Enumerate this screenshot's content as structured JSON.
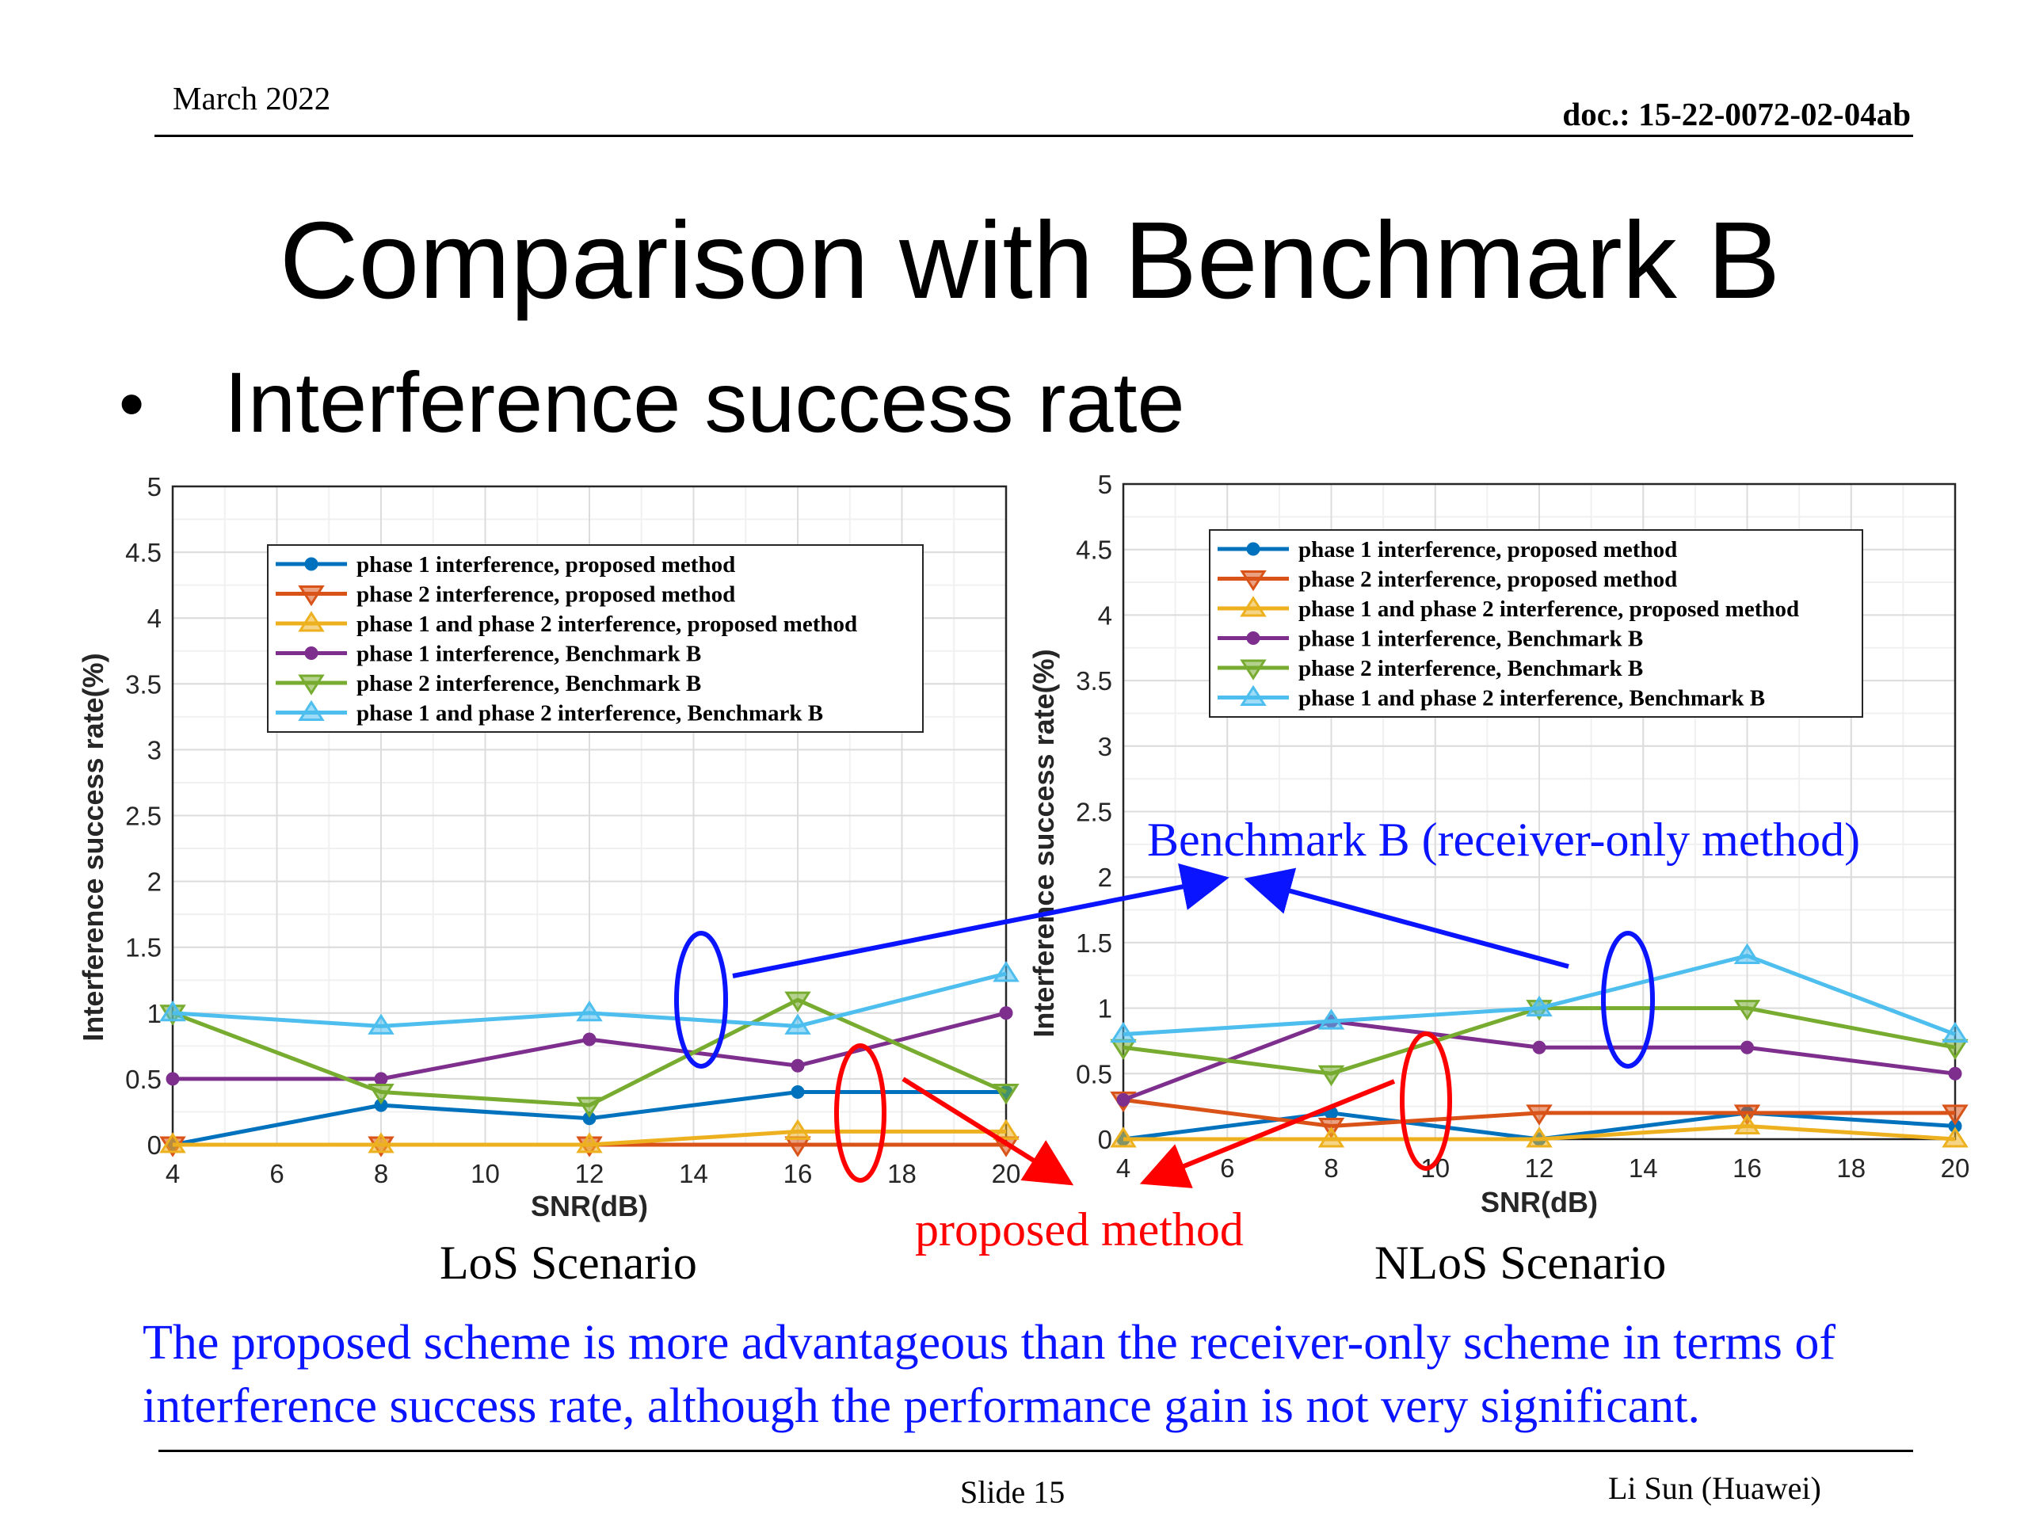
{
  "header": {
    "date": "March 2022",
    "doc": "doc.: 15-22-0072-02-04ab"
  },
  "slide_title": "Comparison with Benchmark B",
  "bullet": "Interference success rate",
  "legend": [
    "phase 1 interference, proposed method",
    "phase 2 interference, proposed method",
    "phase 1 and phase 2 interference, proposed method",
    "phase 1 interference, Benchmark B",
    "phase 2 interference, Benchmark B",
    "phase 1 and phase 2 interference, Benchmark B"
  ],
  "chart_data": [
    {
      "type": "line",
      "caption": "LoS Scenario",
      "xlabel": "SNR(dB)",
      "ylabel": "Interference success rate(%)",
      "xlim": [
        4,
        20
      ],
      "ylim": [
        0,
        5
      ],
      "xticks": [
        "4",
        "6",
        "8",
        "10",
        "12",
        "14",
        "16",
        "18",
        "20"
      ],
      "yticks": [
        "0",
        "0.5",
        "1",
        "1.5",
        "2",
        "2.5",
        "3",
        "3.5",
        "4",
        "4.5",
        "5"
      ],
      "x": [
        4,
        8,
        12,
        16,
        20
      ],
      "grid": true,
      "legend_position": "top",
      "series": [
        {
          "name": "phase 1 interference, proposed method",
          "color": "#0072bd",
          "marker": "circle",
          "values": [
            0,
            0.3,
            0.2,
            0.4,
            0.4
          ]
        },
        {
          "name": "phase 2 interference, proposed method",
          "color": "#d95319",
          "marker": "tri-down",
          "values": [
            0,
            0,
            0,
            0,
            0
          ]
        },
        {
          "name": "phase 1 and phase 2 interference, proposed method",
          "color": "#edb120",
          "marker": "tri-up",
          "values": [
            0,
            0,
            0,
            0.1,
            0.1
          ]
        },
        {
          "name": "phase 1 interference, Benchmark B",
          "color": "#7e2f8e",
          "marker": "circle",
          "values": [
            0.5,
            0.5,
            0.8,
            0.6,
            1.0
          ]
        },
        {
          "name": "phase 2 interference, Benchmark B",
          "color": "#77ac30",
          "marker": "tri-down",
          "values": [
            1.0,
            0.4,
            0.3,
            1.1,
            0.4
          ]
        },
        {
          "name": "phase 1 and phase 2 interference, Benchmark B",
          "color": "#4dbeee",
          "marker": "tri-up",
          "values": [
            1.0,
            0.9,
            1.0,
            0.9,
            1.3
          ]
        }
      ]
    },
    {
      "type": "line",
      "caption": "NLoS Scenario",
      "xlabel": "SNR(dB)",
      "ylabel": "Interference success rate(%)",
      "xlim": [
        4,
        20
      ],
      "ylim": [
        0,
        5
      ],
      "xticks": [
        "4",
        "6",
        "8",
        "10",
        "12",
        "14",
        "16",
        "18",
        "20"
      ],
      "yticks": [
        "0",
        "0.5",
        "1",
        "1.5",
        "2",
        "2.5",
        "3",
        "3.5",
        "4",
        "4.5",
        "5"
      ],
      "x": [
        4,
        8,
        12,
        16,
        20
      ],
      "grid": true,
      "legend_position": "top-right",
      "series": [
        {
          "name": "phase 1 interference, proposed method",
          "color": "#0072bd",
          "marker": "circle",
          "values": [
            0,
            0.2,
            0,
            0.2,
            0.1
          ]
        },
        {
          "name": "phase 2 interference, proposed method",
          "color": "#d95319",
          "marker": "tri-down",
          "values": [
            0.3,
            0.1,
            0.2,
            0.2,
            0.2
          ]
        },
        {
          "name": "phase 1 and phase 2 interference, proposed method",
          "color": "#edb120",
          "marker": "tri-up",
          "values": [
            0,
            0,
            0,
            0.1,
            0
          ]
        },
        {
          "name": "phase 1 interference, Benchmark B",
          "color": "#7e2f8e",
          "marker": "circle",
          "values": [
            0.3,
            0.9,
            0.7,
            0.7,
            0.5
          ]
        },
        {
          "name": "phase 2 interference, Benchmark B",
          "color": "#77ac30",
          "marker": "tri-down",
          "values": [
            0.7,
            0.5,
            1.0,
            1.0,
            0.7
          ]
        },
        {
          "name": "phase 1 and phase 2 interference, Benchmark B",
          "color": "#4dbeee",
          "marker": "tri-up",
          "values": [
            0.8,
            0.9,
            1.0,
            1.4,
            0.8
          ]
        }
      ]
    }
  ],
  "annotations": {
    "benchmark_label": "Benchmark B (receiver-only method)",
    "proposed_label": "proposed method",
    "benchmark_color": "#0a14ff",
    "proposed_color": "#ff0000"
  },
  "conclusion": "The proposed scheme is more advantageous than the receiver-only scheme in terms of interference success rate, although the performance gain is not very significant.",
  "footer": {
    "slide": "Slide 15",
    "author": "Li Sun (Huawei)"
  }
}
